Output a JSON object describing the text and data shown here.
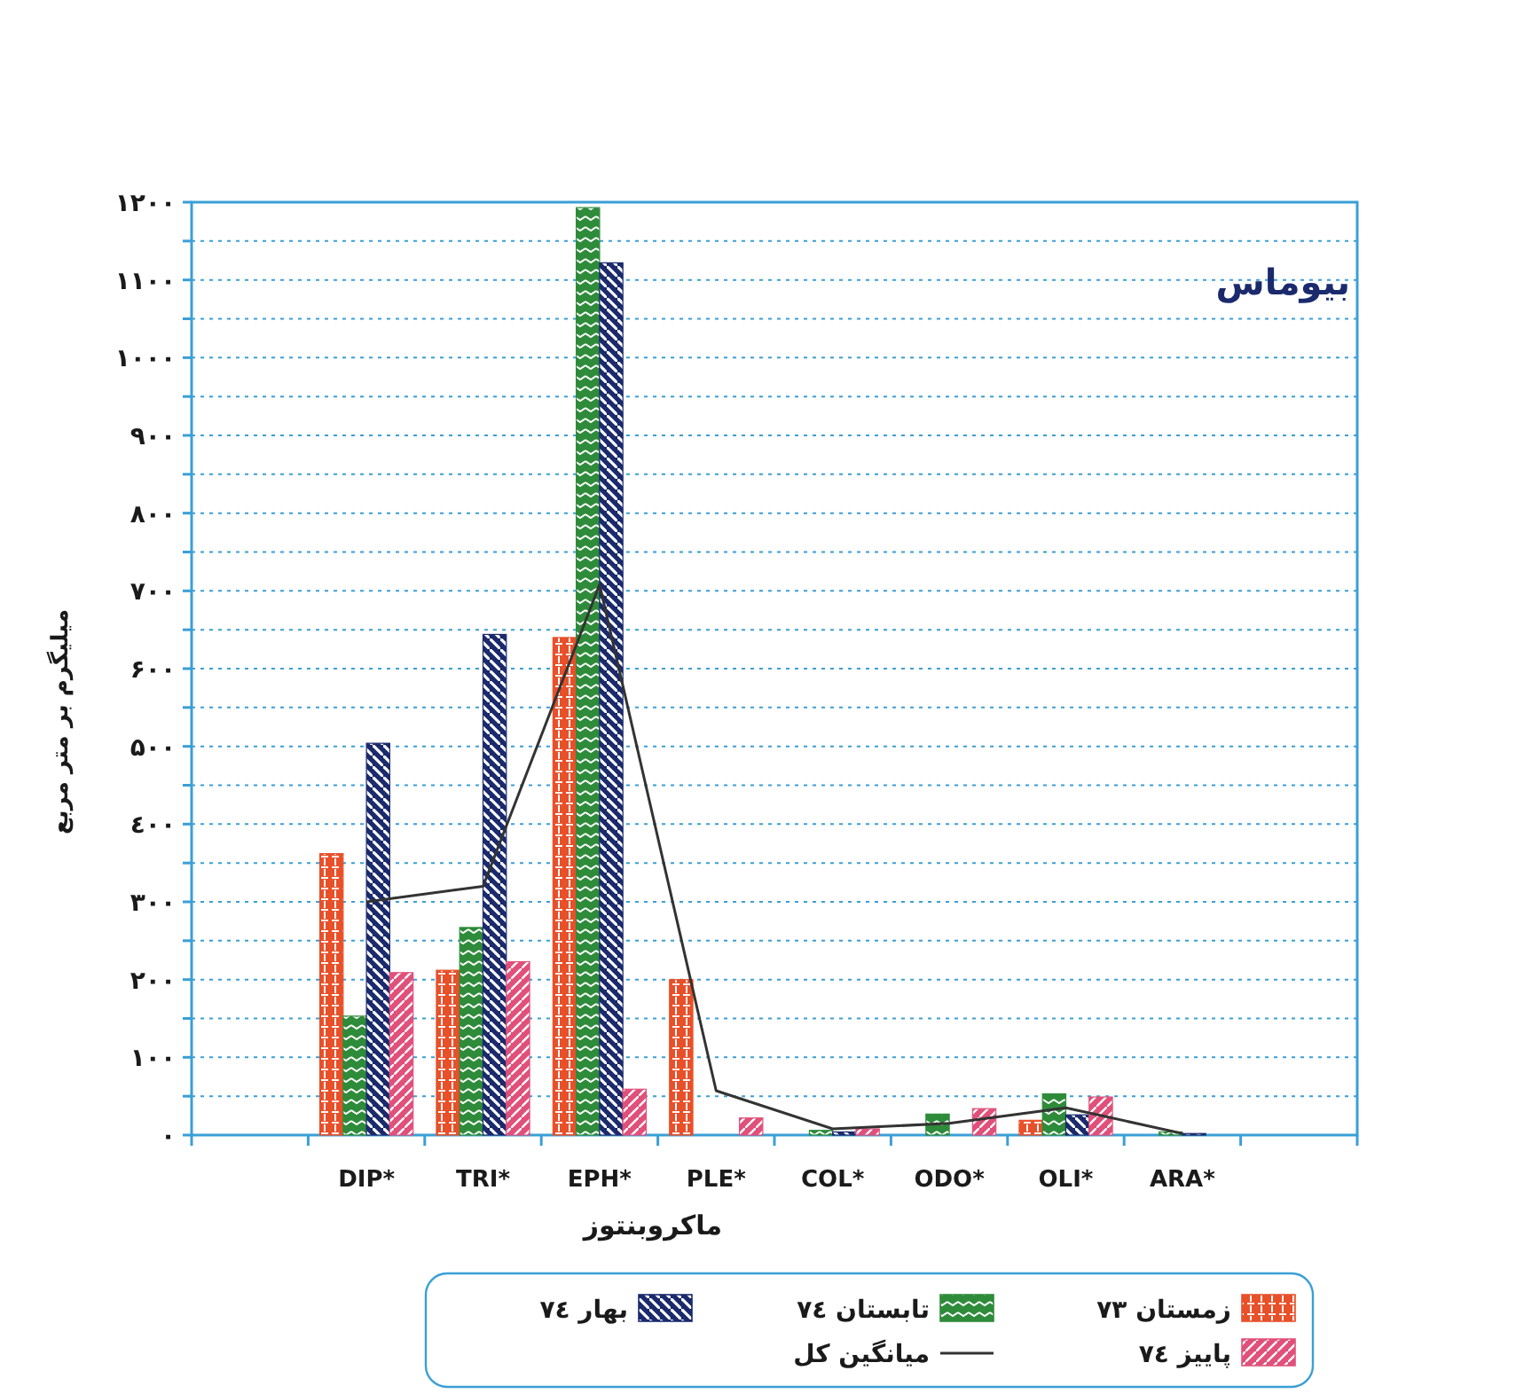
{
  "chart_data": {
    "type": "bar",
    "title": "بیوماس",
    "xlabel": "ماکروبنتوز",
    "ylabel": "میلیگرم بر متر مربع",
    "categories": [
      null,
      "DIP*",
      "TRI*",
      "EPH*",
      "PLE*",
      "COL*",
      "ODO*",
      "OLI*",
      "ARA*",
      null
    ],
    "series": [
      {
        "name": "زمستان ۷۳",
        "color": "#e8502a",
        "values": [
          null,
          362,
          212,
          640,
          200,
          0,
          0,
          19,
          0,
          null
        ]
      },
      {
        "name": "تابستان ۷٤",
        "color": "#2e8b3a",
        "values": [
          null,
          153,
          267,
          1193,
          0,
          6,
          27,
          53,
          4,
          null
        ]
      },
      {
        "name": "بهار ۷٤",
        "color": "#1a2a6c",
        "values": [
          null,
          504,
          644,
          1122,
          0,
          4,
          0,
          26,
          2,
          null
        ]
      },
      {
        "name": "پاییز ۷٤",
        "color": "#e0507a",
        "values": [
          null,
          209,
          223,
          59,
          22,
          8,
          34,
          49,
          0,
          null
        ]
      },
      {
        "name": "میانگین کل",
        "type": "line",
        "color": "#333333",
        "values": [
          null,
          300,
          320,
          708,
          57,
          8,
          15,
          35,
          2,
          null
        ]
      }
    ],
    "ylim": [
      0,
      1200
    ],
    "yticks": [
      {
        "value": 0,
        "label": "۰"
      },
      {
        "value": 50,
        "label": null
      },
      {
        "value": 100,
        "label": "۱۰۰"
      },
      {
        "value": 150,
        "label": null
      },
      {
        "value": 200,
        "label": "۲۰۰"
      },
      {
        "value": 250,
        "label": null
      },
      {
        "value": 300,
        "label": "۳۰۰"
      },
      {
        "value": 350,
        "label": null
      },
      {
        "value": 400,
        "label": "٤۰۰"
      },
      {
        "value": 450,
        "label": null
      },
      {
        "value": 500,
        "label": "۵۰۰"
      },
      {
        "value": 550,
        "label": null
      },
      {
        "value": 600,
        "label": "۶۰۰"
      },
      {
        "value": 650,
        "label": null
      },
      {
        "value": 700,
        "label": "۷۰۰"
      },
      {
        "value": 750,
        "label": null
      },
      {
        "value": 800,
        "label": "۸۰۰"
      },
      {
        "value": 850,
        "label": null
      },
      {
        "value": 900,
        "label": "۹۰۰"
      },
      {
        "value": 950,
        "label": null
      },
      {
        "value": 1000,
        "label": "۱۰۰۰"
      },
      {
        "value": 1050,
        "label": null
      },
      {
        "value": 1100,
        "label": "۱۱۰۰"
      },
      {
        "value": 1150,
        "label": null
      },
      {
        "value": 1200,
        "label": "۱۲۰۰"
      }
    ],
    "grid": "y",
    "legend": "bottom"
  }
}
